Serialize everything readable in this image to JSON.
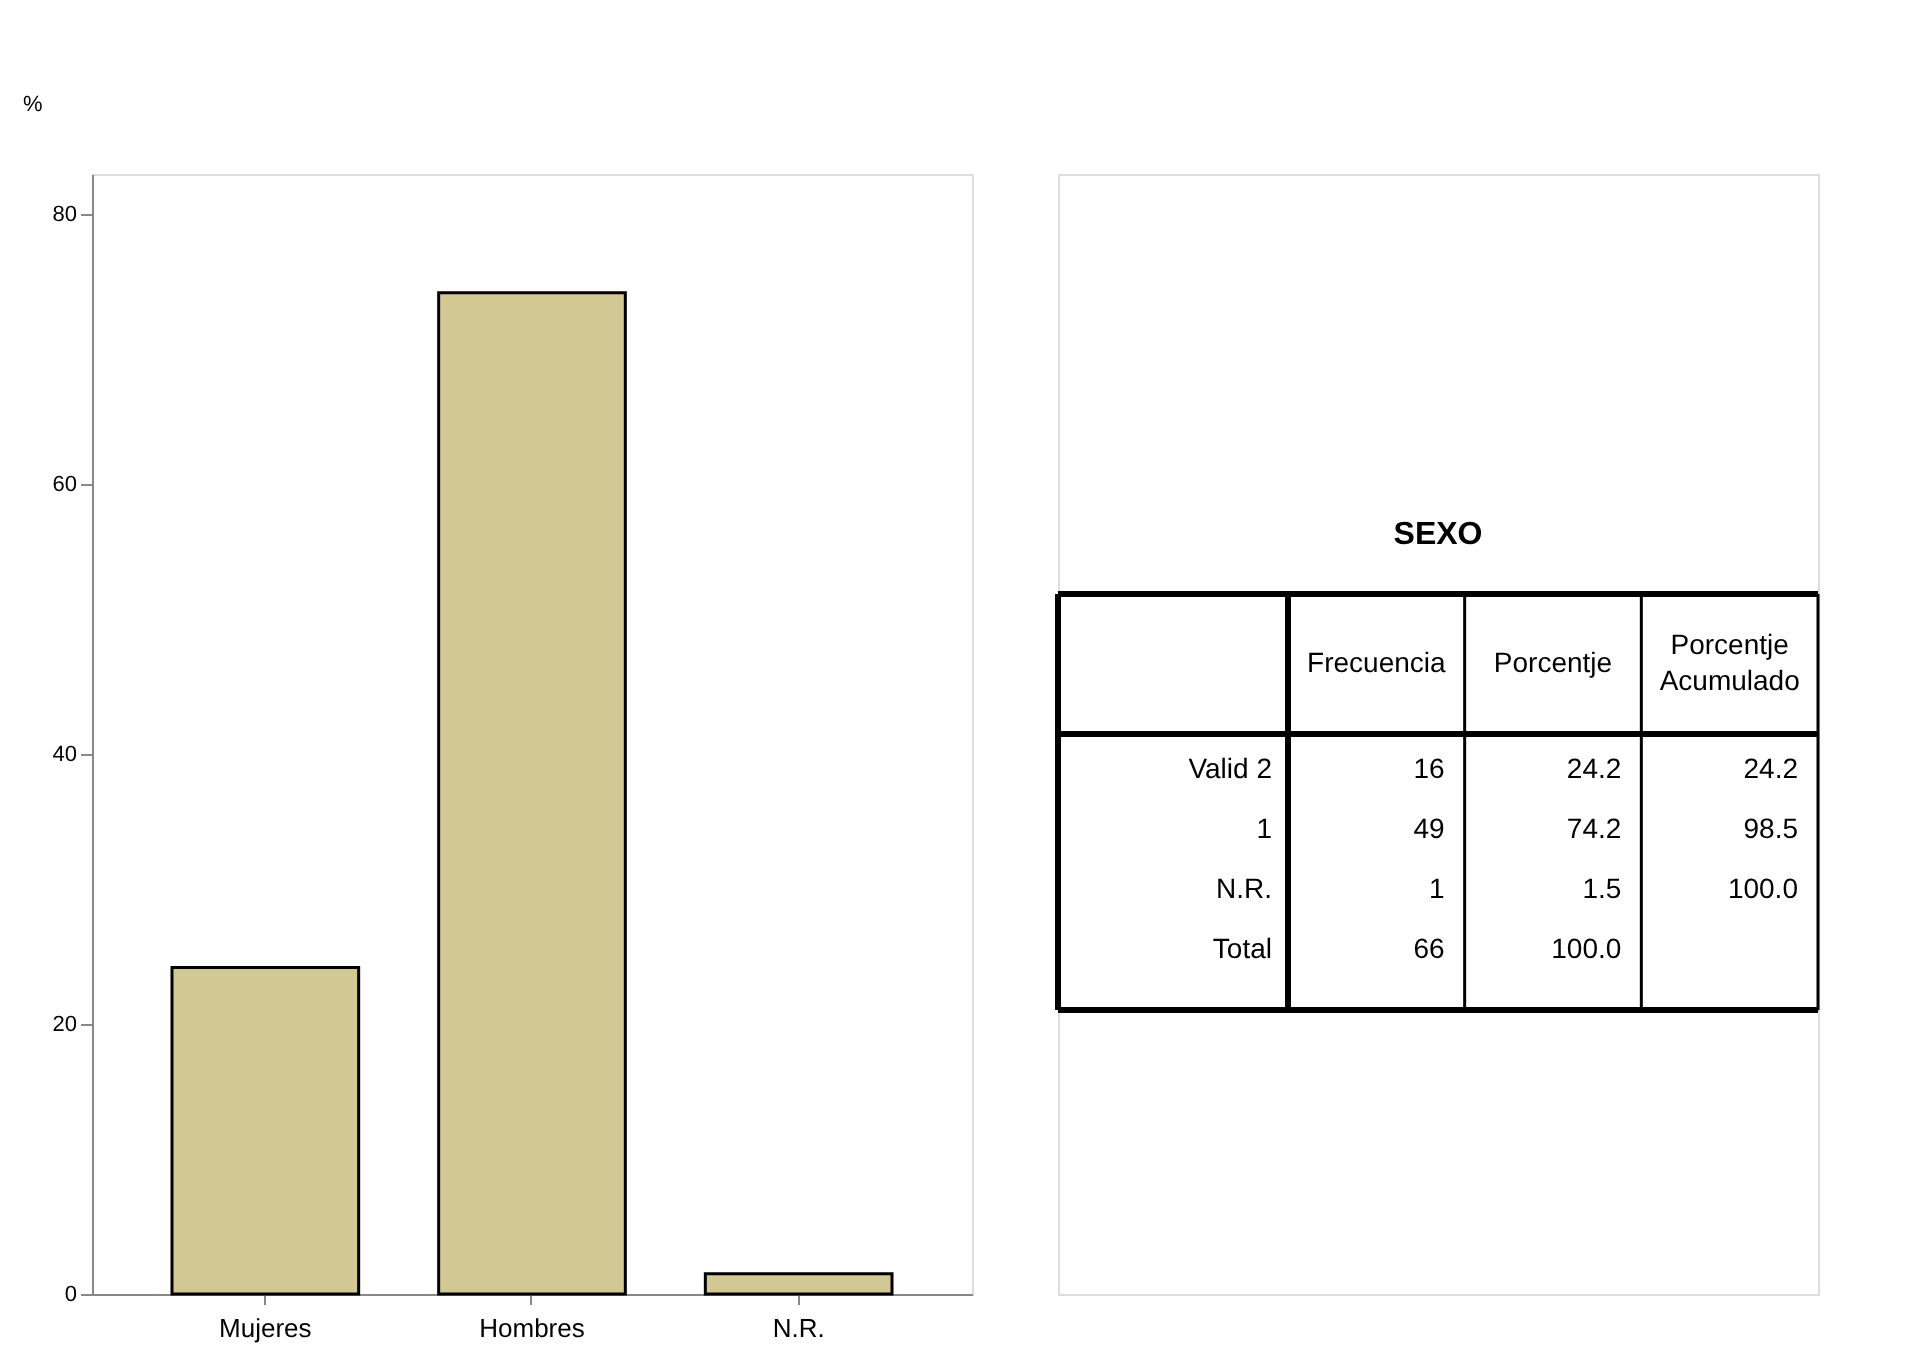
{
  "chart_data": [
    {
      "type": "bar",
      "ylabel": "%",
      "categories": [
        "Mujeres",
        "Hombres",
        "N.R."
      ],
      "values": [
        24.2,
        74.2,
        1.5
      ],
      "color": "#d2c894",
      "ylim": [
        0,
        83
      ],
      "yticks": [
        0,
        20,
        40,
        60,
        80
      ],
      "grid": false
    },
    {
      "type": "other",
      "title": "SEXO",
      "categories": [
        "Frecuencia",
        "Porcentje",
        "Porcentje Acumulado"
      ],
      "y_categories": [
        "Valid 2",
        "1",
        "N.R.",
        "Total"
      ],
      "cell_labels": [
        [
          "16",
          "24.2",
          "24.2"
        ],
        [
          "49",
          "74.2",
          "98.5"
        ],
        [
          "1",
          "1.5",
          "100.0"
        ],
        [
          "66",
          "100.0",
          null
        ]
      ]
    }
  ]
}
